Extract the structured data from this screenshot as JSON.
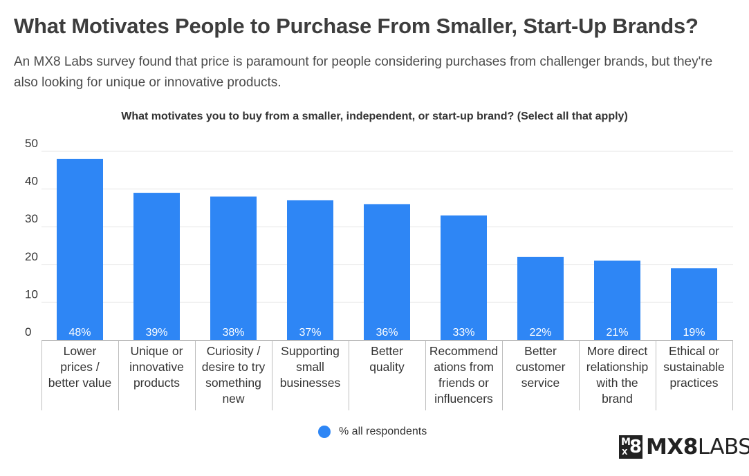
{
  "header": {
    "title": "What Motivates People to Purchase From Smaller, Start-Up Brands?",
    "subtitle": "An MX8 Labs survey found that price is paramount for people considering purchases from challenger brands, but they're also looking for unique or innovative products."
  },
  "chart_data": {
    "type": "bar",
    "title": "What motivates you to buy from a smaller, independent, or start-up brand? (Select all that apply)",
    "categories": [
      [
        "Lower",
        "prices /",
        "better value"
      ],
      [
        "Unique or",
        "innovative",
        "products"
      ],
      [
        "Curiosity /",
        "desire to try",
        "something",
        "new"
      ],
      [
        "Supporting",
        "small",
        "businesses"
      ],
      [
        "Better",
        "quality"
      ],
      [
        "Recommend",
        "ations from",
        "friends or",
        "influencers"
      ],
      [
        "Better",
        "customer",
        "service"
      ],
      [
        "More direct",
        "relationship",
        "with the",
        "brand"
      ],
      [
        "Ethical or",
        "sustainable",
        "practices"
      ]
    ],
    "series": [
      {
        "name": "% all respondents",
        "values": [
          48,
          39,
          38,
          37,
          36,
          33,
          22,
          21,
          19
        ],
        "labels": [
          "48%",
          "39%",
          "38%",
          "37%",
          "36%",
          "33%",
          "22%",
          "21%",
          "19%"
        ]
      }
    ],
    "yticks": [
      "0",
      "10",
      "20",
      "30",
      "40",
      "50"
    ],
    "ylim": [
      0,
      50
    ],
    "grid": true,
    "legend_position": "bottom",
    "bar_color": "#2e86f5"
  },
  "logo": {
    "box_m": "M",
    "box_x": "X",
    "box_8": "8",
    "text_bold": "MX8",
    "text_light": "LABS"
  }
}
